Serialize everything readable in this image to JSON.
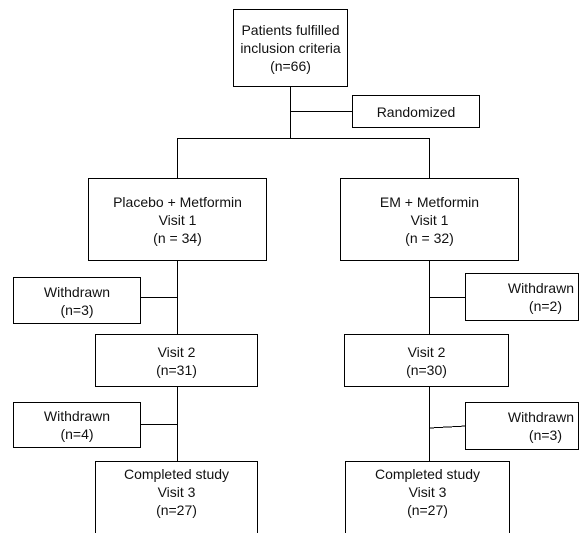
{
  "enrollment": {
    "line1": "Patients fulfilled",
    "line2": "inclusion criteria",
    "line3": "(n=66)"
  },
  "randomized": {
    "label": "Randomized"
  },
  "placebo_arm": {
    "visit1": {
      "line1": "Placebo + Metformin",
      "line2": "Visit 1",
      "line3": "(n = 34)"
    },
    "withdrawn1": {
      "line1": "Withdrawn",
      "line2": "(n=3)"
    },
    "visit2": {
      "line1": "Visit 2",
      "line2": "(n=31)"
    },
    "withdrawn2": {
      "line1": "Withdrawn",
      "line2": "(n=4)"
    },
    "completed": {
      "line1": "Completed study",
      "line2": "Visit 3",
      "line3": "(n=27)"
    }
  },
  "em_arm": {
    "visit1": {
      "line1": "EM + Metformin",
      "line2": "Visit 1",
      "line3": "(n = 32)"
    },
    "withdrawn1": {
      "line1": "Withdrawn",
      "line2": "(n=2)"
    },
    "visit2": {
      "line1": "Visit 2",
      "line2": "(n=30)"
    },
    "withdrawn2": {
      "line1": "Withdrawn",
      "line2": "(n=3)"
    },
    "completed": {
      "line1": "Completed study",
      "line2": "Visit 3",
      "line3": "(n=27)"
    }
  }
}
